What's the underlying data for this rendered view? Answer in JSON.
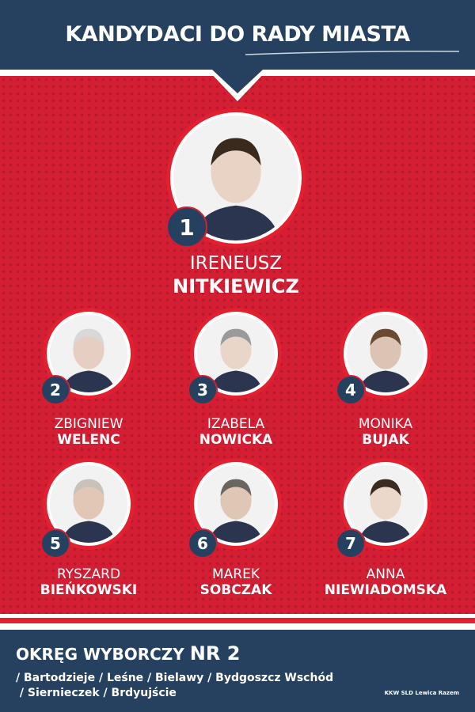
{
  "header": {
    "title": "KANDYDACI DO RADY MIASTA"
  },
  "colors": {
    "navy": "#25415f",
    "red": "#d41e33",
    "white": "#ffffff"
  },
  "candidates": [
    {
      "number": "1",
      "first": "IRENEUSZ",
      "last": "NITKIEWICZ"
    },
    {
      "number": "2",
      "first": "ZBIGNIEW",
      "last": "WELENC"
    },
    {
      "number": "3",
      "first": "IZABELA",
      "last": "NOWICKA"
    },
    {
      "number": "4",
      "first": "MONIKA",
      "last": "BUJAK"
    },
    {
      "number": "5",
      "first": "RYSZARD",
      "last": "BIEŃKOWSKI"
    },
    {
      "number": "6",
      "first": "MAREK",
      "last": "SOBCZAK"
    },
    {
      "number": "7",
      "first": "ANNA",
      "last": "NIEWIADOMSKA"
    }
  ],
  "footer": {
    "district_label": "OKRĘG WYBORCZY ",
    "district_number": "NR 2",
    "areas_line1": "/ Bartodzieje / Leśne / Bielawy / Bydgoszcz Wschód",
    "areas_line2": " / Siernieczek / Brdyujście",
    "committee": "KKW SLD Lewica Razem"
  }
}
